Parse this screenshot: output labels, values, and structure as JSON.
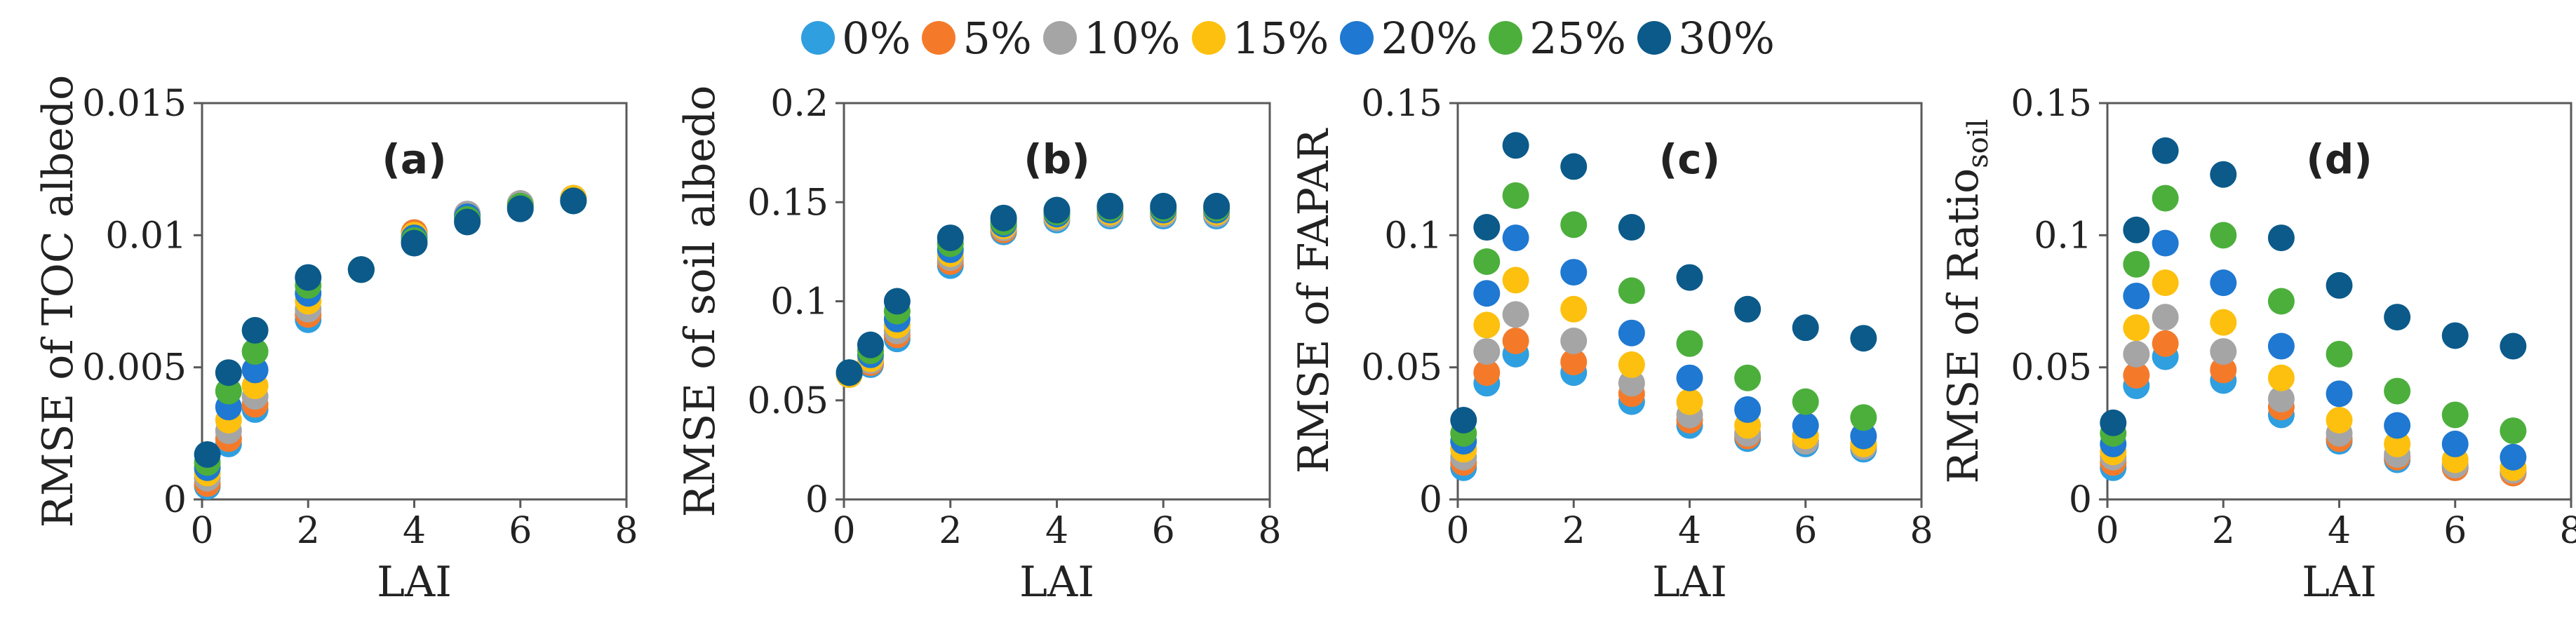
{
  "figure": {
    "series_colors": {
      "0%": "#2f9fe0",
      "5%": "#f47a2a",
      "10%": "#a5a5a5",
      "15%": "#fdc00f",
      "20%": "#1f78d1",
      "25%": "#4caf3c",
      "30%": "#0b5a8a"
    }
  },
  "legend": {
    "items": [
      {
        "label": "0%",
        "color": "#2f9fe0"
      },
      {
        "label": "5%",
        "color": "#f47a2a"
      },
      {
        "label": "10%",
        "color": "#a5a5a5"
      },
      {
        "label": "15%",
        "color": "#fdc00f"
      },
      {
        "label": "20%",
        "color": "#1f78d1"
      },
      {
        "label": "25%",
        "color": "#4caf3c"
      },
      {
        "label": "30%",
        "color": "#0b5a8a"
      }
    ]
  },
  "chart_data": [
    {
      "type": "scatter",
      "panel_label": "(a)",
      "title": "",
      "xlabel": "LAI",
      "ylabel": "RMSE of TOC albedo",
      "ylabel_subscript": "",
      "xlim": [
        0,
        8
      ],
      "ylim": [
        0,
        0.015
      ],
      "xticks": [
        0,
        2,
        4,
        6,
        8
      ],
      "yticks": [
        0,
        0.005,
        0.01,
        0.015
      ],
      "ytick_labels": [
        "0",
        "0.005",
        "0.01",
        "0.015"
      ],
      "x": [
        0.1,
        0.5,
        1,
        2,
        3,
        4,
        5,
        6,
        7
      ],
      "series": [
        {
          "name": "0%",
          "values": [
            0.0005,
            0.0021,
            0.0034,
            0.0068,
            0.0087,
            0.0101,
            0.0108,
            0.0112,
            0.0114
          ]
        },
        {
          "name": "5%",
          "values": [
            0.0006,
            0.0023,
            0.0036,
            0.007,
            0.0087,
            0.0101,
            0.0108,
            0.0112,
            0.0114
          ]
        },
        {
          "name": "10%",
          "values": [
            0.0008,
            0.0026,
            0.0039,
            0.0072,
            0.0087,
            0.01,
            0.0108,
            0.0112,
            0.0114
          ]
        },
        {
          "name": "15%",
          "values": [
            0.001,
            0.003,
            0.0043,
            0.0075,
            0.0087,
            0.01,
            0.0107,
            0.0111,
            0.0114
          ]
        },
        {
          "name": "20%",
          "values": [
            0.0012,
            0.0035,
            0.0049,
            0.0078,
            0.0087,
            0.0099,
            0.0107,
            0.0111,
            0.0113
          ]
        },
        {
          "name": "25%",
          "values": [
            0.0014,
            0.0041,
            0.0056,
            0.0081,
            0.0087,
            0.0098,
            0.0106,
            0.0111,
            0.0113
          ]
        },
        {
          "name": "30%",
          "values": [
            0.0017,
            0.0048,
            0.0064,
            0.0084,
            0.0087,
            0.0097,
            0.0105,
            0.011,
            0.0113
          ]
        }
      ]
    },
    {
      "type": "scatter",
      "panel_label": "(b)",
      "title": "",
      "xlabel": "LAI",
      "ylabel": "RMSE of soil albedo",
      "ylabel_subscript": "",
      "xlim": [
        0,
        8
      ],
      "ylim": [
        0,
        0.2
      ],
      "xticks": [
        0,
        2,
        4,
        6,
        8
      ],
      "yticks": [
        0,
        0.05,
        0.1,
        0.15,
        0.2
      ],
      "ytick_labels": [
        "0",
        "0.05",
        "0.1",
        "0.15",
        "0.2"
      ],
      "x": [
        0.1,
        0.5,
        1,
        2,
        3,
        4,
        5,
        6,
        7
      ],
      "series": [
        {
          "name": "0%",
          "values": [
            0.063,
            0.068,
            0.081,
            0.118,
            0.135,
            0.141,
            0.143,
            0.143,
            0.143
          ]
        },
        {
          "name": "5%",
          "values": [
            0.063,
            0.069,
            0.083,
            0.12,
            0.136,
            0.142,
            0.144,
            0.144,
            0.144
          ]
        },
        {
          "name": "10%",
          "values": [
            0.063,
            0.07,
            0.085,
            0.122,
            0.137,
            0.142,
            0.144,
            0.144,
            0.144
          ]
        },
        {
          "name": "15%",
          "values": [
            0.063,
            0.071,
            0.088,
            0.124,
            0.138,
            0.143,
            0.145,
            0.145,
            0.145
          ]
        },
        {
          "name": "20%",
          "values": [
            0.064,
            0.073,
            0.091,
            0.126,
            0.139,
            0.144,
            0.146,
            0.146,
            0.146
          ]
        },
        {
          "name": "25%",
          "values": [
            0.064,
            0.075,
            0.095,
            0.129,
            0.14,
            0.145,
            0.147,
            0.147,
            0.147
          ]
        },
        {
          "name": "30%",
          "values": [
            0.064,
            0.078,
            0.1,
            0.132,
            0.142,
            0.146,
            0.148,
            0.148,
            0.148
          ]
        }
      ]
    },
    {
      "type": "scatter",
      "panel_label": "(c)",
      "title": "",
      "xlabel": "LAI",
      "ylabel": "RMSE of FAPAR",
      "ylabel_subscript": "",
      "xlim": [
        0,
        8
      ],
      "ylim": [
        0,
        0.15
      ],
      "xticks": [
        0,
        2,
        4,
        6,
        8
      ],
      "yticks": [
        0,
        0.05,
        0.1,
        0.15
      ],
      "ytick_labels": [
        "0",
        "0.05",
        "0.1",
        "0.15"
      ],
      "x": [
        0.1,
        0.5,
        1,
        2,
        3,
        4,
        5,
        6,
        7
      ],
      "series": [
        {
          "name": "0%",
          "values": [
            0.012,
            0.044,
            0.055,
            0.048,
            0.037,
            0.028,
            0.023,
            0.021,
            0.019
          ]
        },
        {
          "name": "5%",
          "values": [
            0.014,
            0.048,
            0.06,
            0.052,
            0.04,
            0.03,
            0.024,
            0.022,
            0.02
          ]
        },
        {
          "name": "10%",
          "values": [
            0.016,
            0.056,
            0.07,
            0.06,
            0.044,
            0.032,
            0.025,
            0.022,
            0.02
          ]
        },
        {
          "name": "15%",
          "values": [
            0.019,
            0.066,
            0.083,
            0.072,
            0.051,
            0.037,
            0.028,
            0.024,
            0.021
          ]
        },
        {
          "name": "20%",
          "values": [
            0.022,
            0.078,
            0.099,
            0.086,
            0.063,
            0.046,
            0.034,
            0.028,
            0.024
          ]
        },
        {
          "name": "25%",
          "values": [
            0.025,
            0.09,
            0.115,
            0.104,
            0.079,
            0.059,
            0.046,
            0.037,
            0.031
          ]
        },
        {
          "name": "30%",
          "values": [
            0.03,
            0.103,
            0.134,
            0.126,
            0.103,
            0.084,
            0.072,
            0.065,
            0.061
          ]
        }
      ]
    },
    {
      "type": "scatter",
      "panel_label": "(d)",
      "title": "",
      "xlabel": "LAI",
      "ylabel": "RMSE of Ratio",
      "ylabel_subscript": "soil",
      "xlim": [
        0,
        8
      ],
      "ylim": [
        0,
        0.15
      ],
      "xticks": [
        0,
        2,
        4,
        6,
        8
      ],
      "yticks": [
        0,
        0.05,
        0.1,
        0.15
      ],
      "ytick_labels": [
        "0",
        "0.05",
        "0.1",
        "0.15"
      ],
      "x": [
        0.1,
        0.5,
        1,
        2,
        3,
        4,
        5,
        6,
        7
      ],
      "series": [
        {
          "name": "0%",
          "values": [
            0.012,
            0.043,
            0.054,
            0.045,
            0.032,
            0.022,
            0.015,
            0.012,
            0.01
          ]
        },
        {
          "name": "5%",
          "values": [
            0.014,
            0.047,
            0.059,
            0.049,
            0.035,
            0.023,
            0.016,
            0.012,
            0.01
          ]
        },
        {
          "name": "10%",
          "values": [
            0.016,
            0.055,
            0.069,
            0.056,
            0.038,
            0.025,
            0.017,
            0.013,
            0.011
          ]
        },
        {
          "name": "15%",
          "values": [
            0.018,
            0.065,
            0.082,
            0.067,
            0.046,
            0.03,
            0.021,
            0.015,
            0.012
          ]
        },
        {
          "name": "20%",
          "values": [
            0.021,
            0.077,
            0.097,
            0.082,
            0.058,
            0.04,
            0.028,
            0.021,
            0.016
          ]
        },
        {
          "name": "25%",
          "values": [
            0.025,
            0.089,
            0.114,
            0.1,
            0.075,
            0.055,
            0.041,
            0.032,
            0.026
          ]
        },
        {
          "name": "30%",
          "values": [
            0.029,
            0.102,
            0.132,
            0.123,
            0.099,
            0.081,
            0.069,
            0.062,
            0.058
          ]
        }
      ]
    }
  ]
}
